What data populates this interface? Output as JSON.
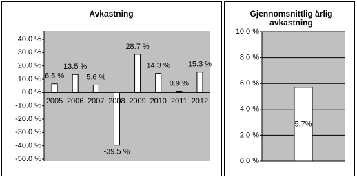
{
  "chart_data": [
    {
      "type": "bar",
      "title": "Avkastning",
      "categories": [
        "2005",
        "2006",
        "2007",
        "2008",
        "2009",
        "2010",
        "2011",
        "2012"
      ],
      "values": [
        6.5,
        13.5,
        5.6,
        -39.5,
        28.7,
        14.3,
        0.9,
        15.3
      ],
      "value_labels": [
        "6.5 %",
        "13.5 %",
        "5.6 %",
        "-39.5 %",
        "28.7 %",
        "14.3 %",
        "0.9 %",
        "15.3 %"
      ],
      "color": "#ffffff",
      "ylim": [
        -50,
        40
      ],
      "yticks": [
        {
          "value": 40,
          "label": "40.0 %"
        },
        {
          "value": 30,
          "label": "30.0 %"
        },
        {
          "value": 20,
          "label": "20.0 %"
        },
        {
          "value": 10,
          "label": "10.0 %"
        },
        {
          "value": 0,
          "label": "0.0 %"
        },
        {
          "value": -10,
          "label": "-10.0 %"
        },
        {
          "value": -20,
          "label": "-20.0 %"
        },
        {
          "value": -30,
          "label": "-30.0 %"
        },
        {
          "value": -40,
          "label": "-40.0 %"
        },
        {
          "value": -50,
          "label": "-50.0 %"
        }
      ],
      "grid": false
    },
    {
      "type": "bar",
      "title": "Gjennomsnittlig årlig avkastning",
      "values": [
        5.7
      ],
      "value_labels": [
        "5.7%"
      ],
      "color": "#ffffff",
      "ylim": [
        0,
        10
      ],
      "yticks": [
        {
          "value": 10,
          "label": "10.0 %"
        },
        {
          "value": 8,
          "label": "8.0 %"
        },
        {
          "value": 6,
          "label": "6.0 %"
        },
        {
          "value": 4,
          "label": "4.0 %"
        },
        {
          "value": 2,
          "label": "2.0 %"
        },
        {
          "value": 0,
          "label": "0.0 %"
        }
      ],
      "grid": true
    }
  ]
}
